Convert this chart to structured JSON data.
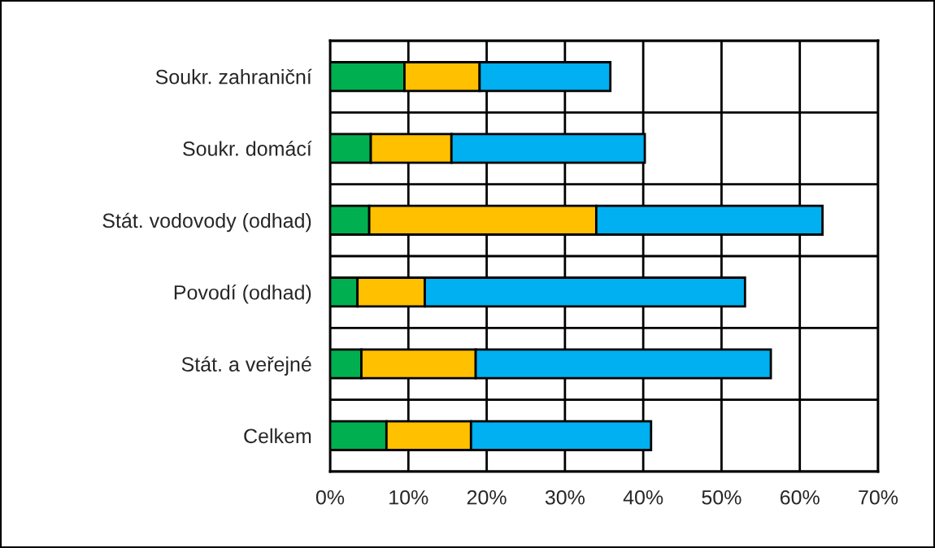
{
  "chart_data": {
    "type": "bar",
    "orientation": "horizontal",
    "stacked": true,
    "categories": [
      "Soukr. zahraniční",
      "Soukr. domácí",
      "Stát. vodovody (odhad)",
      "Povodí (odhad)",
      "Stát. a veřejné",
      "Celkem"
    ],
    "series": [
      {
        "color": "#00b050",
        "values": [
          9.5,
          5.2,
          5.0,
          3.5,
          4.0,
          7.2
        ]
      },
      {
        "color": "#ffc000",
        "values": [
          9.6,
          10.3,
          29.0,
          8.6,
          14.6,
          10.8
        ]
      },
      {
        "color": "#00b0f0",
        "values": [
          16.7,
          24.7,
          28.9,
          40.9,
          37.7,
          23.0
        ]
      }
    ],
    "xlim": [
      0,
      70
    ],
    "xticks": [
      {
        "value": 0,
        "label": "0%"
      },
      {
        "value": 10,
        "label": "10%"
      },
      {
        "value": 20,
        "label": "20%"
      },
      {
        "value": 30,
        "label": "30%"
      },
      {
        "value": 40,
        "label": "40%"
      },
      {
        "value": 50,
        "label": "50%"
      },
      {
        "value": 60,
        "label": "60%"
      },
      {
        "value": 70,
        "label": "70%"
      }
    ],
    "grid": true,
    "legend": false
  }
}
